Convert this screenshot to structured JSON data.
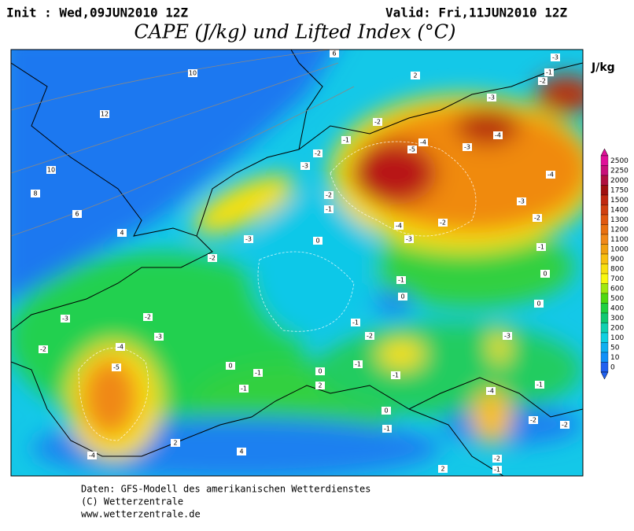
{
  "header": {
    "init": "Init : Wed,09JUN2010 12Z",
    "valid": "Valid: Fri,11JUN2010 12Z",
    "title": "CAPE (J/kg) und Lifted Index (°C)"
  },
  "colorbar": {
    "unit": "J/kg",
    "levels": [
      2500,
      2250,
      2000,
      1750,
      1500,
      1400,
      1300,
      1200,
      1100,
      1000,
      900,
      800,
      700,
      600,
      500,
      400,
      300,
      200,
      100,
      50,
      10,
      0
    ],
    "colors": [
      "#e0109a",
      "#c8107a",
      "#b01040",
      "#a01010",
      "#c02810",
      "#d04010",
      "#e05810",
      "#e87010",
      "#f08818",
      "#f0a010",
      "#f8c010",
      "#f8e010",
      "#f8f810",
      "#a0e810",
      "#50d810",
      "#20d040",
      "#10c870",
      "#10d0b0",
      "#10d0e0",
      "#10b0f0",
      "#1090f8",
      "#2060f0"
    ]
  },
  "contour_labels": [
    10,
    12,
    10,
    8,
    6,
    4,
    2,
    6,
    -3,
    -1,
    -2,
    -3,
    -3,
    -4,
    -5,
    -4,
    -1,
    -2,
    -2,
    -3,
    -2,
    -1,
    -4,
    -3,
    -2,
    -3,
    -4,
    -2,
    -1,
    0,
    0,
    -3,
    -2,
    0,
    -1,
    0,
    -3,
    -2,
    -3,
    -2,
    -4,
    -5,
    -1,
    -2,
    -1,
    -1,
    0,
    -1,
    0,
    2,
    -1,
    -3,
    -1,
    -4,
    -2,
    -2,
    0,
    -1,
    2,
    4,
    -4,
    -2,
    -1,
    2
  ],
  "footer": [
    "Daten: GFS-Modell des amerikanischen Wetterdienstes",
    "(C) Wetterzentrale",
    "www.wetterzentrale.de"
  ]
}
